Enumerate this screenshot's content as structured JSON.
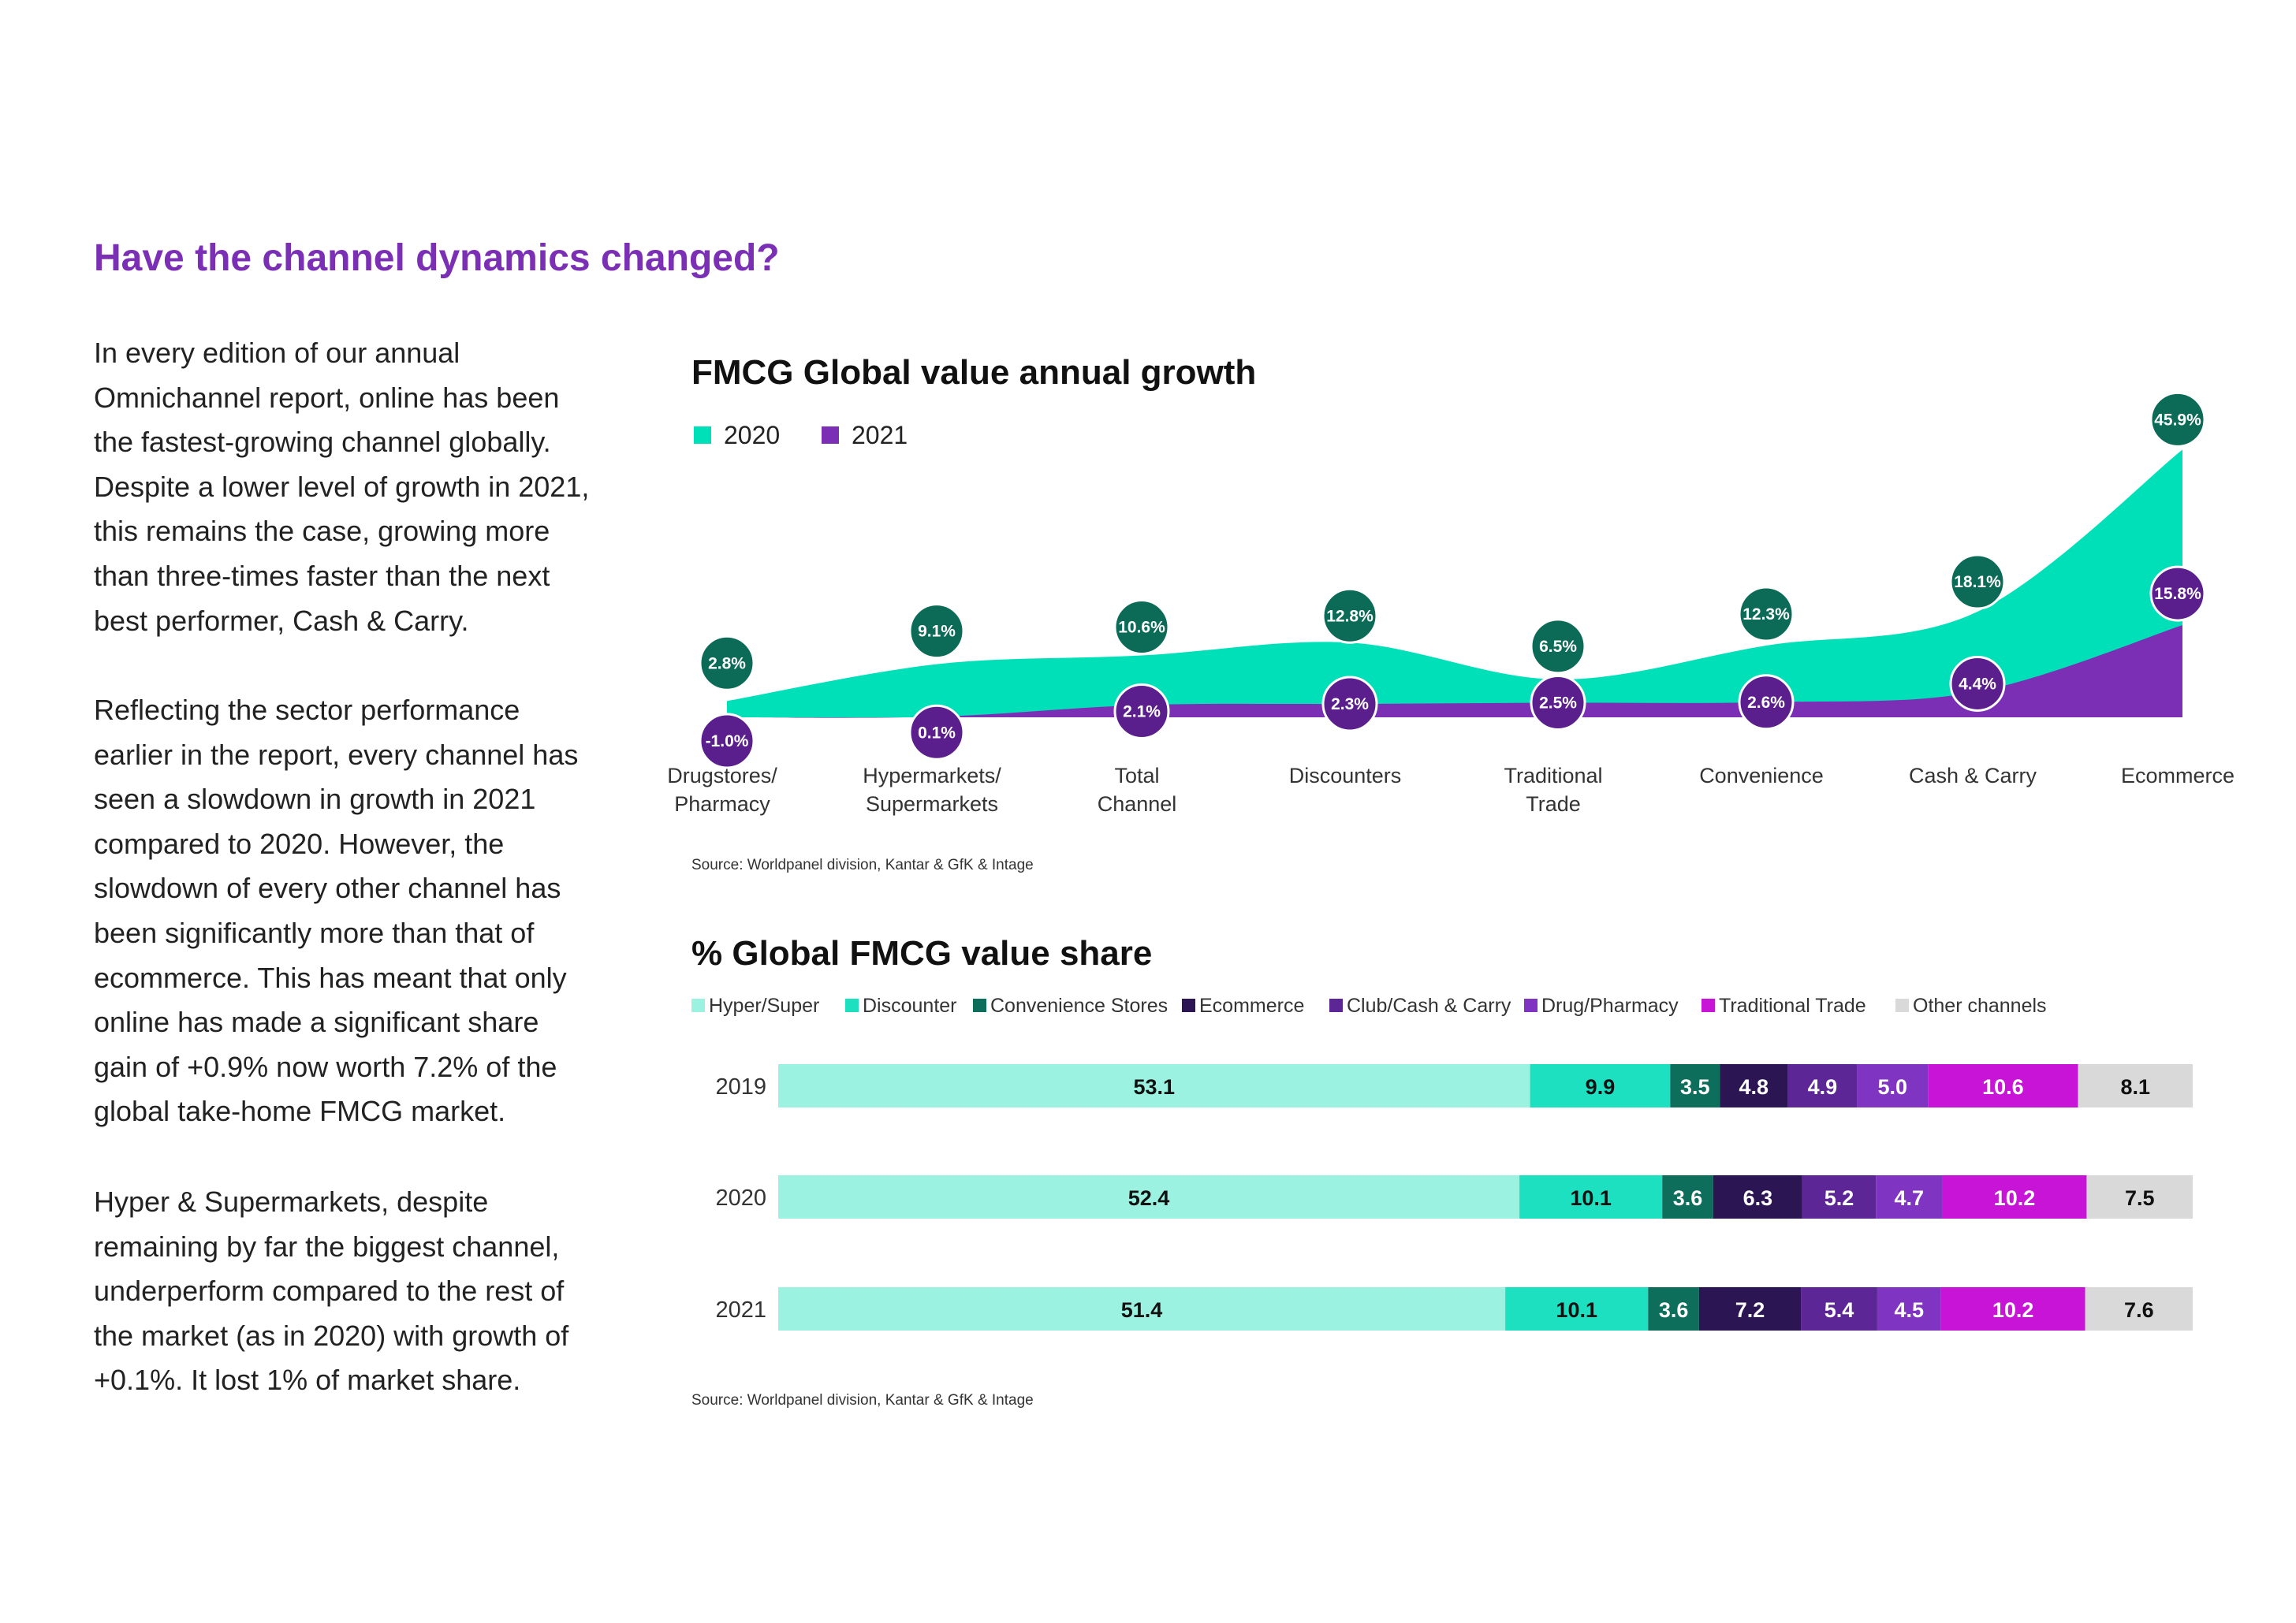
{
  "page": {
    "title": "Have the channel dynamics changed?",
    "paragraphs": [
      [
        "In every edition of our annual",
        "Omnichannel report, online has been",
        "the fastest-growing channel globally.",
        "Despite a lower level of growth in 2021,",
        "this remains the case, growing more",
        "than three-times faster than the next",
        "best performer, Cash & Carry."
      ],
      [
        "Reflecting the sector performance",
        "earlier in the report, every channel has",
        "seen a slowdown in growth in 2021",
        "compared to 2020. However, the",
        "slowdown of every other channel has",
        "been significantly more than that of",
        "ecommerce. This has meant that only",
        "online has made a significant share",
        "gain of +0.9% now worth 7.2% of the",
        "global take-home FMCG market."
      ],
      [
        "Hyper & Supermarkets, despite",
        "remaining by far the biggest channel,",
        "underperform compared to the rest of",
        "the market (as in 2020) with growth of",
        "+0.1%. It lost 1% of market share."
      ]
    ]
  },
  "colors": {
    "title_purple": "#7b2fb5",
    "area_2020": "#00e0b8",
    "area_2021": "#7b2fb5",
    "bubble_2020": "#0c6b57",
    "bubble_2021": "#5a1f8c"
  },
  "chart_data": [
    {
      "type": "area",
      "title": "FMCG Global value annual growth",
      "legend": [
        "2020",
        "2021"
      ],
      "categories": [
        [
          "Drugstores/",
          "Pharmacy"
        ],
        [
          "Hypermarkets/",
          "Supermarkets"
        ],
        [
          "Total",
          "Channel"
        ],
        [
          "Discounters"
        ],
        [
          "Traditional",
          "Trade"
        ],
        [
          "Convenience"
        ],
        [
          "Cash & Carry"
        ],
        [
          "Ecommerce"
        ]
      ],
      "series": [
        {
          "name": "2020",
          "values": [
            2.8,
            9.1,
            10.6,
            12.8,
            6.5,
            12.3,
            18.1,
            45.9
          ],
          "labels": [
            "2.8%",
            "9.1%",
            "10.6%",
            "12.8%",
            "6.5%",
            "12.3%",
            "18.1%",
            "45.9%"
          ]
        },
        {
          "name": "2021",
          "values": [
            -1.0,
            0.1,
            2.1,
            2.3,
            2.5,
            2.6,
            4.4,
            15.8
          ],
          "labels": [
            "-1.0%",
            "0.1%",
            "2.1%",
            "2.3%",
            "2.5%",
            "2.6%",
            "4.4%",
            "15.8%"
          ]
        }
      ],
      "source": "Source: Worldpanel division, Kantar & GfK & Intage"
    },
    {
      "type": "bar",
      "stacked": true,
      "horizontal": true,
      "title": "% Global FMCG value share",
      "legend": [
        {
          "name": "Hyper/Super",
          "color": "#9cf2e0"
        },
        {
          "name": "Discounter",
          "color": "#1de0c0"
        },
        {
          "name": "Convenience Stores",
          "color": "#0e6e5c"
        },
        {
          "name": "Ecommerce",
          "color": "#2c1553"
        },
        {
          "name": "Club/Cash & Carry",
          "color": "#5c2696"
        },
        {
          "name": "Drug/Pharmacy",
          "color": "#7f35c2"
        },
        {
          "name": "Traditional Trade",
          "color": "#c814d6"
        },
        {
          "name": "Other channels",
          "color": "#d9d9d9"
        }
      ],
      "label_colors": [
        "#111111",
        "#111111",
        "#ffffff",
        "#ffffff",
        "#ffffff",
        "#ffffff",
        "#ffffff",
        "#111111"
      ],
      "categories": [
        "2019",
        "2020",
        "2021"
      ],
      "values": [
        [
          53.1,
          9.9,
          3.5,
          4.8,
          4.9,
          5.0,
          10.6,
          8.1
        ],
        [
          52.4,
          10.1,
          3.6,
          6.3,
          5.2,
          4.7,
          10.2,
          7.5
        ],
        [
          51.4,
          10.1,
          3.6,
          7.2,
          5.4,
          4.5,
          10.2,
          7.6
        ]
      ],
      "labels": [
        [
          "53.1",
          "9.9",
          "3.5",
          "4.8",
          "4.9",
          "5.0",
          "10.6",
          "8.1"
        ],
        [
          "52.4",
          "10.1",
          "3.6",
          "6.3",
          "5.2",
          "4.7",
          "10.2",
          "7.5"
        ],
        [
          "51.4",
          "10.1",
          "3.6",
          "7.2",
          "5.4",
          "4.5",
          "10.2",
          "7.6"
        ]
      ],
      "source": "Source: Worldpanel division, Kantar & GfK & Intage"
    }
  ]
}
